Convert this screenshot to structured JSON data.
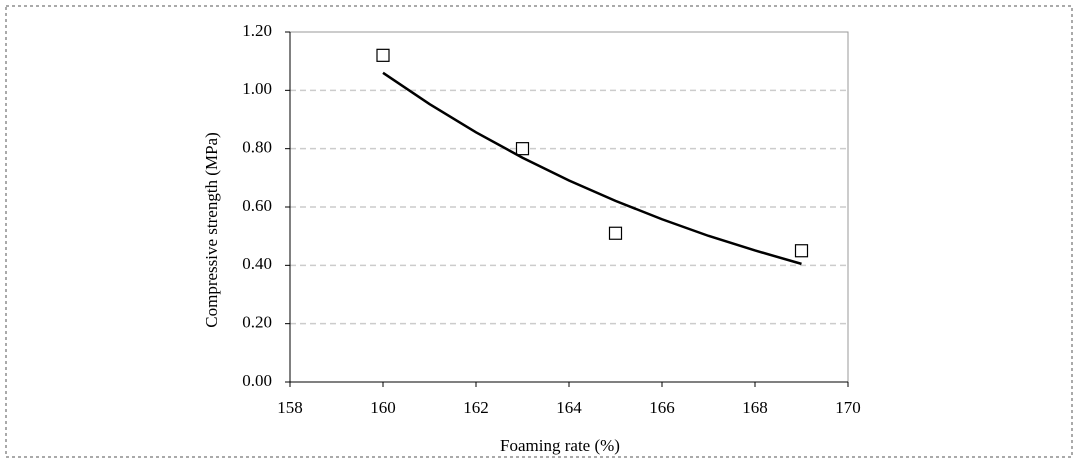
{
  "chart_data": {
    "type": "scatter",
    "xlabel": "Foaming rate (%)",
    "ylabel": "Compressive strength (MPa)",
    "xlim": [
      158,
      170
    ],
    "xticks": [
      158,
      160,
      162,
      164,
      166,
      168,
      170
    ],
    "ylim": [
      0,
      1.2
    ],
    "yticks": [
      {
        "value": 0,
        "label": "0.00"
      },
      {
        "value": 0.2,
        "label": "0.20"
      },
      {
        "value": 0.4,
        "label": "0.40"
      },
      {
        "value": 0.6,
        "label": "0.60"
      },
      {
        "value": 0.8,
        "label": "0.80"
      },
      {
        "value": 1.0,
        "label": "1.00"
      },
      {
        "value": 1.2,
        "label": "1.20"
      }
    ],
    "grid": true,
    "series": [
      {
        "mode": "markers",
        "marker": "square",
        "color": "#000000",
        "x": [
          160,
          163,
          165,
          169
        ],
        "values": [
          1.12,
          0.8,
          0.51,
          0.45
        ]
      },
      {
        "mode": "line",
        "color": "#000000",
        "x": [
          160,
          161,
          162,
          163,
          164,
          165,
          166,
          167,
          168,
          169
        ],
        "values": [
          1.06,
          0.953,
          0.856,
          0.769,
          0.691,
          0.621,
          0.558,
          0.501,
          0.451,
          0.405
        ]
      }
    ]
  }
}
